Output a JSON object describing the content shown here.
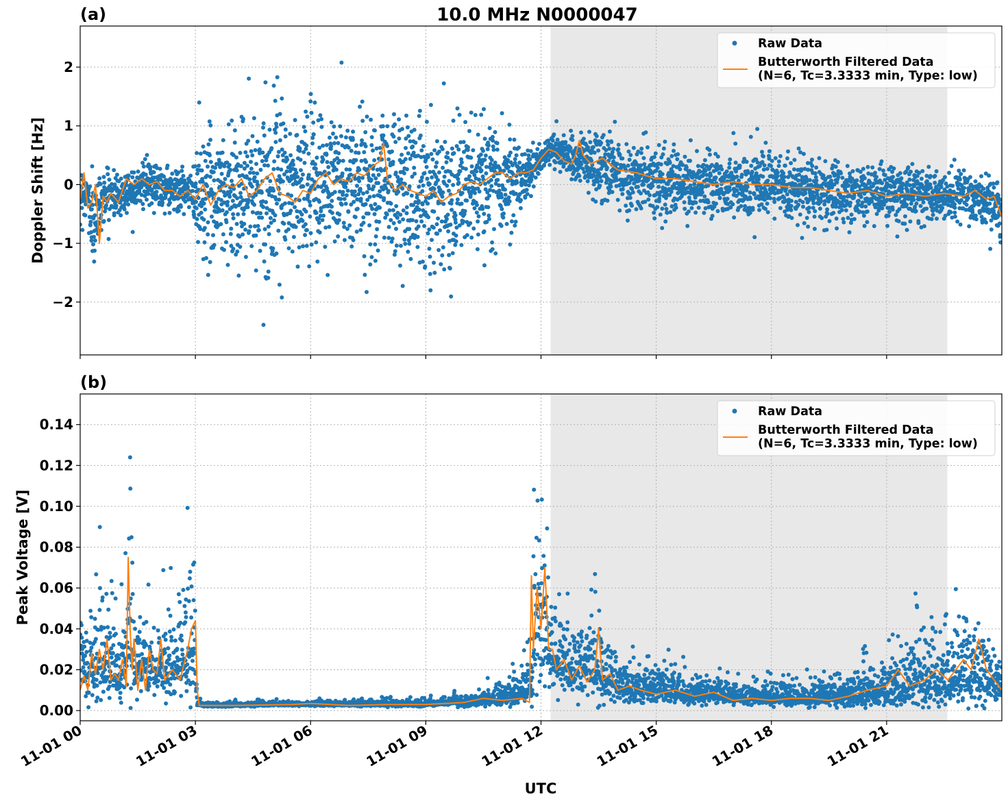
{
  "chart_data": {
    "type": "scatter",
    "title": "10.0 MHz N0000047",
    "xlabel": "UTC",
    "x_tick_labels": [
      "11-01 00",
      "11-01 03",
      "11-01 06",
      "11-01 09",
      "11-01 12",
      "11-01 15",
      "11-01 18",
      "11-01 21"
    ],
    "x_range_hours": [
      0,
      24
    ],
    "shaded_interval_hours": [
      12.25,
      22.58
    ],
    "grid": true,
    "legend_placement": "upper right",
    "colors": {
      "raw": "#1f77b4",
      "filtered": "#ff7f0e",
      "shade": "#e8e8e8"
    },
    "legend": {
      "raw": "Raw Data",
      "filtered_line1": "Butterworth Filtered Data",
      "filtered_line2": "(N=6, Tc=3.3333 min, Type: low)"
    },
    "panels": [
      {
        "label": "(a)",
        "ylabel": "Doppler Shift [Hz]",
        "ylim": [
          -2.9,
          2.7
        ],
        "y_ticks": [
          -2,
          -1,
          0,
          1,
          2
        ],
        "y_tick_labels": [
          "−2",
          "−1",
          "0",
          "1",
          "2"
        ],
        "series": [
          {
            "name": "Raw Data",
            "kind": "scatter-envelope",
            "x": [
              0,
              0.2,
              0.35,
              0.5,
              0.6,
              0.8,
              1.0,
              1.5,
              2.0,
              2.5,
              2.95,
              3.05,
              3.5,
              4.0,
              4.5,
              5.0,
              5.5,
              6.0,
              6.5,
              7.0,
              7.5,
              7.9,
              8.3,
              8.8,
              9.3,
              9.8,
              10.3,
              10.8,
              11.3,
              11.7,
              12.0,
              12.3,
              12.7,
              13.1,
              13.5,
              14.0,
              15.0,
              16.0,
              17.0,
              18.0,
              19.0,
              20.0,
              21.0,
              22.0,
              23.0,
              23.6,
              24.0
            ],
            "center": [
              -0.1,
              -0.2,
              -0.8,
              -0.3,
              -0.2,
              -0.15,
              -0.2,
              0.0,
              0.0,
              -0.1,
              -0.15,
              -0.1,
              -0.15,
              -0.1,
              -0.1,
              -0.05,
              -0.1,
              0.0,
              0.05,
              0.0,
              0.05,
              0.15,
              -0.05,
              -0.1,
              -0.15,
              -0.1,
              -0.05,
              0.05,
              0.1,
              0.2,
              0.45,
              0.65,
              0.45,
              0.4,
              0.3,
              0.2,
              0.05,
              0.0,
              0.0,
              -0.05,
              -0.1,
              -0.15,
              -0.15,
              -0.2,
              -0.2,
              -0.3,
              -0.5
            ],
            "spread": [
              0.35,
              0.35,
              0.6,
              0.4,
              0.35,
              0.3,
              0.3,
              0.3,
              0.3,
              0.3,
              0.3,
              0.9,
              0.95,
              1.0,
              1.0,
              1.0,
              1.05,
              1.05,
              1.0,
              1.0,
              1.0,
              1.05,
              1.05,
              1.0,
              1.0,
              0.9,
              0.9,
              0.8,
              0.6,
              0.35,
              0.2,
              0.2,
              0.25,
              0.45,
              0.5,
              0.5,
              0.45,
              0.45,
              0.45,
              0.45,
              0.45,
              0.4,
              0.4,
              0.35,
              0.35,
              0.35,
              0.4
            ],
            "n_points": 4200
          },
          {
            "name": "Butterworth Filtered Data",
            "kind": "line",
            "x": [
              0,
              0.1,
              0.2,
              0.3,
              0.4,
              0.5,
              0.6,
              0.7,
              0.8,
              1.0,
              1.2,
              1.4,
              1.6,
              1.8,
              2.0,
              2.2,
              2.4,
              2.6,
              2.8,
              3.0,
              3.2,
              3.4,
              3.6,
              3.8,
              4.0,
              4.2,
              4.4,
              4.6,
              4.8,
              5.0,
              5.2,
              5.4,
              5.6,
              5.8,
              6.0,
              6.2,
              6.4,
              6.6,
              6.8,
              7.0,
              7.2,
              7.4,
              7.6,
              7.8,
              7.9,
              8.0,
              8.2,
              8.4,
              8.6,
              8.8,
              9.0,
              9.2,
              9.4,
              9.6,
              9.8,
              10.0,
              10.2,
              10.4,
              10.6,
              10.8,
              11.0,
              11.2,
              11.4,
              11.6,
              11.8,
              12.0,
              12.2,
              12.4,
              12.6,
              12.8,
              12.9,
              13.0,
              13.1,
              13.3,
              13.6,
              14.0,
              14.5,
              15.0,
              15.5,
              16.0,
              16.5,
              17.0,
              17.5,
              18.0,
              18.5,
              19.0,
              19.5,
              20.0,
              20.5,
              21.0,
              21.5,
              22.0,
              22.5,
              23.0,
              23.3,
              23.6,
              23.8,
              24.0
            ],
            "y": [
              -0.25,
              0.2,
              -0.4,
              -0.3,
              0.0,
              -1.0,
              -0.2,
              -0.3,
              -0.15,
              -0.3,
              0.1,
              0.0,
              0.1,
              0.0,
              0.05,
              -0.1,
              -0.1,
              -0.2,
              -0.1,
              -0.25,
              0.0,
              -0.35,
              -0.1,
              0.0,
              -0.05,
              0.1,
              -0.2,
              -0.1,
              0.1,
              0.2,
              -0.15,
              -0.2,
              -0.3,
              -0.1,
              -0.15,
              0.1,
              0.2,
              0.0,
              0.1,
              0.05,
              0.2,
              0.15,
              0.3,
              0.4,
              0.7,
              0.1,
              -0.1,
              0.0,
              -0.1,
              -0.15,
              -0.2,
              -0.1,
              -0.3,
              -0.2,
              -0.15,
              0.0,
              0.05,
              0.0,
              0.1,
              0.2,
              0.2,
              0.1,
              0.2,
              0.2,
              0.25,
              0.45,
              0.6,
              0.55,
              0.4,
              0.35,
              0.5,
              0.75,
              0.5,
              0.35,
              0.45,
              0.25,
              0.2,
              0.1,
              0.1,
              0.05,
              0.0,
              0.05,
              0.0,
              0.0,
              -0.05,
              -0.05,
              -0.1,
              -0.15,
              -0.1,
              -0.2,
              -0.15,
              -0.2,
              -0.15,
              -0.2,
              -0.1,
              -0.25,
              -0.2,
              -0.55
            ]
          }
        ]
      },
      {
        "label": "(b)",
        "ylabel": "Peak Voltage [V]",
        "ylim": [
          -0.005,
          0.155
        ],
        "y_ticks": [
          0.0,
          0.02,
          0.04,
          0.06,
          0.08,
          0.1,
          0.12,
          0.14
        ],
        "y_tick_labels": [
          "0.00",
          "0.02",
          "0.04",
          "0.06",
          "0.08",
          "0.10",
          "0.12",
          "0.14"
        ],
        "series": [
          {
            "name": "Raw Data",
            "kind": "scatter-envelope",
            "x": [
              0,
              0.3,
              0.6,
              0.9,
              1.2,
              1.3,
              1.4,
              1.6,
              1.9,
              2.2,
              2.6,
              2.95,
              3.05,
              3.2,
              4.0,
              5.0,
              6.0,
              7.0,
              8.0,
              9.0,
              9.5,
              10.0,
              10.5,
              11.0,
              11.5,
              11.75,
              11.85,
              12.1,
              12.3,
              12.6,
              13.0,
              13.3,
              13.6,
              14.0,
              14.5,
              15.0,
              16.0,
              17.0,
              18.0,
              19.0,
              20.0,
              20.5,
              21.0,
              21.5,
              22.0,
              22.5,
              23.0,
              23.5,
              24.0
            ],
            "center": [
              0.02,
              0.018,
              0.025,
              0.018,
              0.02,
              0.04,
              0.02,
              0.02,
              0.022,
              0.018,
              0.022,
              0.035,
              0.003,
              0.0025,
              0.0025,
              0.003,
              0.003,
              0.003,
              0.003,
              0.003,
              0.004,
              0.004,
              0.005,
              0.006,
              0.008,
              0.012,
              0.04,
              0.035,
              0.025,
              0.022,
              0.02,
              0.02,
              0.018,
              0.012,
              0.01,
              0.01,
              0.008,
              0.007,
              0.006,
              0.006,
              0.007,
              0.008,
              0.01,
              0.012,
              0.014,
              0.015,
              0.016,
              0.018,
              0.01
            ],
            "spread": [
              0.01,
              0.01,
              0.015,
              0.01,
              0.012,
              0.035,
              0.012,
              0.01,
              0.012,
              0.01,
              0.012,
              0.02,
              0.0008,
              0.0006,
              0.0006,
              0.0006,
              0.0006,
              0.0006,
              0.0008,
              0.0008,
              0.001,
              0.0015,
              0.002,
              0.003,
              0.004,
              0.006,
              0.03,
              0.02,
              0.012,
              0.01,
              0.01,
              0.012,
              0.01,
              0.006,
              0.005,
              0.005,
              0.004,
              0.003,
              0.003,
              0.003,
              0.004,
              0.005,
              0.006,
              0.008,
              0.01,
              0.01,
              0.012,
              0.012,
              0.006
            ],
            "n_points": 4200
          },
          {
            "name": "Butterworth Filtered Data",
            "kind": "line",
            "x": [
              0,
              0.1,
              0.2,
              0.3,
              0.4,
              0.5,
              0.6,
              0.7,
              0.8,
              0.9,
              1.0,
              1.1,
              1.2,
              1.25,
              1.3,
              1.35,
              1.4,
              1.5,
              1.6,
              1.7,
              1.8,
              1.9,
              2.0,
              2.1,
              2.2,
              2.4,
              2.6,
              2.8,
              2.9,
              3.0,
              3.05,
              3.1,
              4.0,
              5.0,
              5.5,
              6.0,
              7.0,
              8.0,
              9.0,
              9.5,
              10.0,
              10.5,
              11.0,
              11.5,
              11.7,
              11.75,
              11.8,
              11.9,
              12.0,
              12.1,
              12.2,
              12.3,
              12.4,
              12.6,
              12.8,
              13.0,
              13.2,
              13.4,
              13.5,
              13.6,
              13.8,
              14.0,
              14.3,
              14.6,
              15.0,
              15.5,
              16.0,
              16.5,
              17.0,
              17.5,
              18.0,
              18.5,
              19.0,
              19.5,
              20.0,
              20.5,
              21.0,
              21.3,
              21.6,
              22.0,
              22.3,
              22.6,
              23.0,
              23.2,
              23.4,
              23.6,
              23.8,
              24.0
            ],
            "y": [
              0.01,
              0.017,
              0.01,
              0.028,
              0.018,
              0.03,
              0.02,
              0.035,
              0.015,
              0.018,
              0.015,
              0.025,
              0.012,
              0.075,
              0.04,
              0.02,
              0.035,
              0.01,
              0.025,
              0.01,
              0.03,
              0.02,
              0.018,
              0.035,
              0.015,
              0.02,
              0.015,
              0.03,
              0.04,
              0.044,
              0.01,
              0.0025,
              0.0025,
              0.0028,
              0.003,
              0.0035,
              0.0025,
              0.003,
              0.003,
              0.0035,
              0.004,
              0.006,
              0.005,
              0.006,
              0.004,
              0.066,
              0.03,
              0.06,
              0.04,
              0.07,
              0.03,
              0.03,
              0.02,
              0.025,
              0.015,
              0.022,
              0.014,
              0.02,
              0.04,
              0.015,
              0.018,
              0.01,
              0.012,
              0.01,
              0.008,
              0.01,
              0.007,
              0.009,
              0.005,
              0.006,
              0.005,
              0.006,
              0.006,
              0.005,
              0.007,
              0.01,
              0.012,
              0.02,
              0.012,
              0.015,
              0.02,
              0.015,
              0.025,
              0.02,
              0.035,
              0.02,
              0.015,
              0.01
            ]
          }
        ]
      }
    ]
  }
}
